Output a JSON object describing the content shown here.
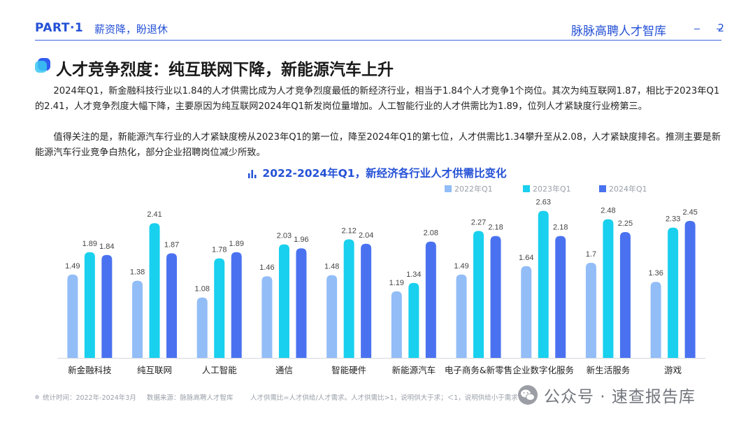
{
  "header": {
    "part": "PART·1",
    "section": "薪资降，盼退休",
    "brand": "脉脉高聘人才智库",
    "page": "2"
  },
  "title": "人才竞争烈度：纯互联网下降，新能源汽车上升",
  "paragraphs": [
    "2024年Q1，新金融科技行业以1.84的人才供需比成为人才竞争烈度最低的新经济行业，相当于1.84个人才竞争1个岗位。其次为纯互联网1.87，相比于2023年Q1的2.41，人才竞争烈度大幅下降，主要原因为纯互联网2024年Q1新发岗位量增加。人工智能行业的人才供需比为1.89，位列人才紧缺度行业榜第三。",
    "值得关注的是，新能源汽车行业的人才紧缺度榜从2023年Q1的第一位，降至2024年Q1的第七位，人才供需比1.34攀升至从2.08，人才紧缺度排名。推测主要是新能源汽车行业竞争白热化，部分企业招聘岗位减少所致。"
  ],
  "colors": {
    "accent": "#2451d6",
    "s2022": "#92bdf7",
    "s2023": "#19d0ee",
    "s2024": "#4a72f0"
  },
  "chart_data": {
    "type": "bar",
    "title": "2022-2024年Q1，新经济各行业人才供需比变化",
    "categories": [
      "新金融科技",
      "纯互联网",
      "人工智能",
      "通信",
      "智能硬件",
      "新能源汽车",
      "电子商务&新零售",
      "企业数字化服务",
      "新生活服务",
      "游戏"
    ],
    "series": [
      {
        "name": "2022年Q1",
        "values": [
          1.49,
          1.38,
          1.08,
          1.46,
          1.48,
          1.19,
          1.49,
          1.64,
          1.7,
          1.36
        ]
      },
      {
        "name": "2023年Q1",
        "values": [
          1.89,
          2.41,
          1.78,
          2.03,
          2.12,
          1.34,
          2.27,
          2.63,
          2.48,
          2.33
        ]
      },
      {
        "name": "2024年Q1",
        "values": [
          1.84,
          1.87,
          1.89,
          1.96,
          2.04,
          2.08,
          2.18,
          2.18,
          2.25,
          2.45
        ]
      }
    ],
    "xlabel": "",
    "ylabel": "",
    "ylim": [
      0,
      2.8
    ],
    "grid": false,
    "legend": "top-right"
  },
  "footer": {
    "stat_time": "统计时间：2022年-2024年3月",
    "source": "数据来源：脉脉高聘人才智库",
    "note": "人才供需比=人才供给/人才需求。人才供需比>1，说明供大于求；＜1，说明供给小于需求"
  },
  "watermark": "公众号 · 速查报告库"
}
